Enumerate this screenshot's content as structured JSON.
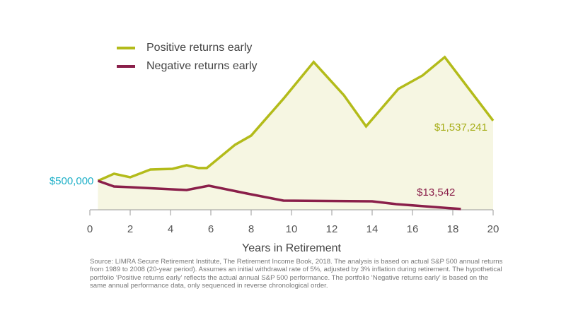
{
  "chart_data": {
    "type": "line",
    "xlabel": "Years in Retirement",
    "source": "Source: LIMRA Secure Retirement Institute, The Retirement Income Book, 2018. The analysis is based on actual S&P 500 annual returns from 1989 to 2008 (20-year period). Assumes an initial withdrawal rate of 5%, adjusted by 3% inflation during retirement. The hypothetical portfolio ‘Positive returns early’ reflects the actual annual S&P 500 performance. The portfolio ‘Negative returns early’ is based on the same annual performance data, only sequenced in reverse chronological order.",
    "xlim": [
      0,
      20
    ],
    "xticks": [
      0,
      2,
      4,
      6,
      8,
      10,
      12,
      14,
      16,
      18,
      20
    ],
    "ylim": [
      0,
      2900000
    ],
    "legend": "top-left",
    "series": [
      {
        "name": "Positive returns early",
        "color": "#b3bb1a",
        "fill": "#f6f6e2",
        "x": [
          0.4,
          1.2,
          2.0,
          3.0,
          4.1,
          4.8,
          5.4,
          5.8,
          7.2,
          8.0,
          9.6,
          11.1,
          12.6,
          13.7,
          15.3,
          16.5,
          17.6,
          20
        ],
        "values": [
          500000,
          622000,
          561000,
          695000,
          707000,
          768000,
          720000,
          720000,
          1122000,
          1280000,
          1915000,
          2549000,
          1976000,
          1439000,
          2085000,
          2317000,
          2634000,
          1537241
        ],
        "value_labels": [
          "$500,000",
          null,
          null,
          null,
          null,
          null,
          null,
          null,
          null,
          null,
          null,
          null,
          null,
          null,
          null,
          null,
          null,
          "$1,537,241"
        ],
        "label_colors": [
          "#1fb0c8",
          "#a6ad18"
        ]
      },
      {
        "name": "Negative returns early",
        "color": "#8a1f4a",
        "x": [
          0.4,
          1.2,
          2.0,
          4.8,
          5.9,
          7.8,
          9.6,
          14.0,
          15.2,
          18.4
        ],
        "values": [
          500000,
          402000,
          390000,
          341000,
          415000,
          280000,
          159000,
          146000,
          98000,
          13542
        ],
        "value_labels": [
          null,
          null,
          null,
          null,
          null,
          null,
          null,
          null,
          null,
          "$13,542"
        ],
        "label_colors": [
          "#8a1f4a"
        ]
      }
    ]
  }
}
